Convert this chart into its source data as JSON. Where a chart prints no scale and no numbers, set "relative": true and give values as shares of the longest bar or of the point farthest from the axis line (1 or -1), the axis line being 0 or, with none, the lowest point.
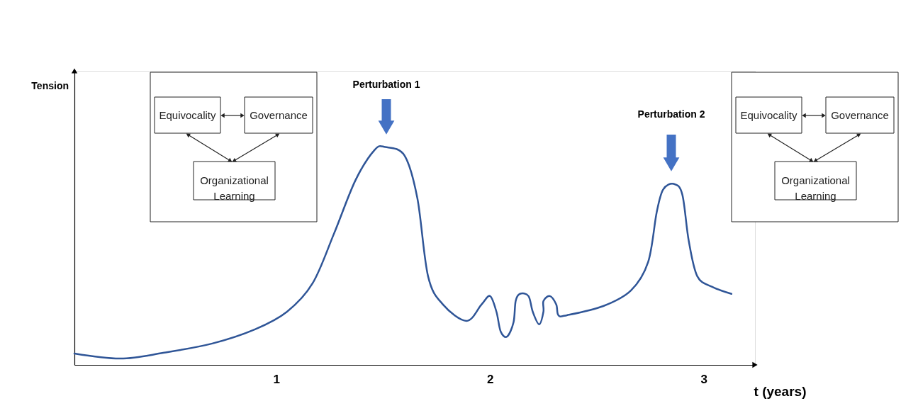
{
  "chart_data": {
    "type": "line",
    "relative": true,
    "xlabel": "t (years)",
    "xlim": [
      0.055,
      3.24
    ],
    "xticks": [
      1,
      2,
      3
    ],
    "grid": false,
    "marker": "none",
    "line_style": "solid",
    "series": [
      {
        "color": "#2f5597",
        "x": [
          0.055,
          0.27,
          0.47,
          0.7,
          0.9,
          1.05,
          1.17,
          1.27,
          1.37,
          1.46,
          1.51,
          1.6,
          1.66,
          1.71,
          1.78,
          1.89,
          1.96,
          2.0,
          2.03,
          2.05,
          2.08,
          2.11,
          2.12,
          2.14,
          2.18,
          2.2,
          2.23,
          2.25,
          2.25,
          2.28,
          2.31,
          2.32,
          2.36,
          2.53,
          2.66,
          2.74,
          2.78,
          2.81,
          2.86,
          2.9,
          2.93,
          2.97,
          3.04,
          3.13
        ],
        "values": [
          0.052,
          0.029,
          0.055,
          0.098,
          0.163,
          0.244,
          0.375,
          0.603,
          0.847,
          0.987,
          1.0,
          0.961,
          0.765,
          0.407,
          0.277,
          0.202,
          0.277,
          0.316,
          0.244,
          0.153,
          0.13,
          0.195,
          0.293,
          0.326,
          0.316,
          0.244,
          0.186,
          0.244,
          0.293,
          0.316,
          0.277,
          0.228,
          0.228,
          0.27,
          0.342,
          0.472,
          0.7,
          0.805,
          0.831,
          0.782,
          0.57,
          0.407,
          0.358,
          0.326
        ]
      }
    ],
    "annotations": [
      "Tension",
      "Perturbation 1",
      "Perturbation 2",
      "Equivocality",
      "Governance",
      "Organizational Learning",
      "Equivocality",
      "Governance",
      "Organizational Learning"
    ]
  }
}
